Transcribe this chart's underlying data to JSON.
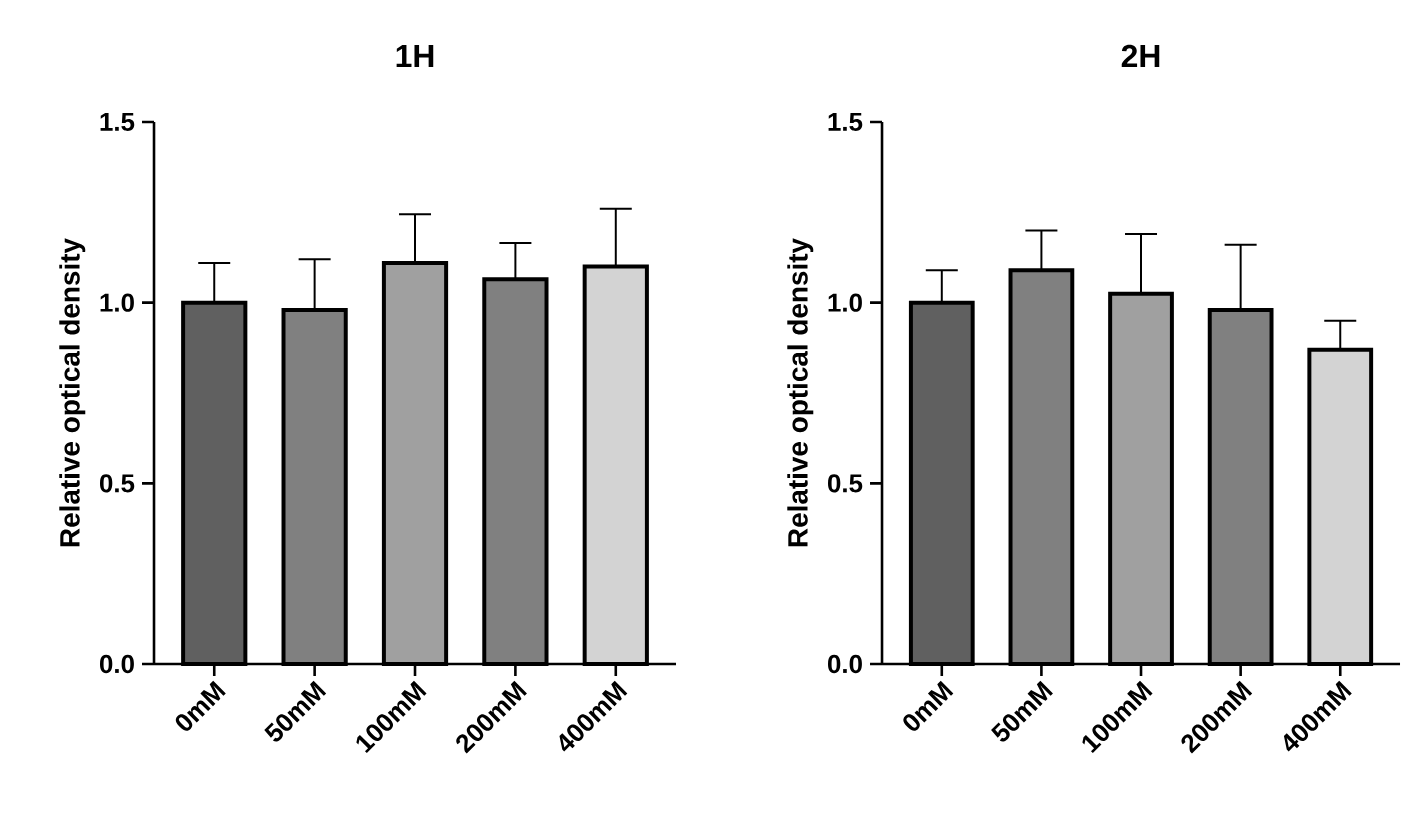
{
  "chart_data": [
    {
      "type": "bar",
      "title": "1H",
      "ylabel": "Relative optical density",
      "categories": [
        "0mM",
        "50mM",
        "100mM",
        "200mM",
        "400mM"
      ],
      "values": [
        1.0,
        0.98,
        1.11,
        1.065,
        1.1
      ],
      "errors": [
        [
          1.0,
          1.11
        ],
        [
          0.98,
          1.12
        ],
        [
          1.11,
          1.245
        ],
        [
          1.065,
          1.165
        ],
        [
          1.1,
          1.26
        ]
      ],
      "colors": [
        "#606060",
        "#808080",
        "#a0a0a0",
        "#808080",
        "#d3d3d3"
      ],
      "ylim": [
        0,
        1.5
      ],
      "yticks": [
        {
          "value": 0,
          "label": "0.0"
        },
        {
          "value": 0.5,
          "label": "0.5"
        },
        {
          "value": 1.0,
          "label": "1.0"
        },
        {
          "value": 1.5,
          "label": "1.5"
        }
      ]
    },
    {
      "type": "bar",
      "title": "2H",
      "ylabel": "Relative optical density",
      "categories": [
        "0mM",
        "50mM",
        "100mM",
        "200mM",
        "400mM"
      ],
      "values": [
        1.0,
        1.09,
        1.025,
        0.98,
        0.87
      ],
      "errors": [
        [
          1.0,
          1.09
        ],
        [
          1.09,
          1.2
        ],
        [
          1.025,
          1.19
        ],
        [
          0.98,
          1.16
        ],
        [
          0.87,
          0.95
        ]
      ],
      "colors": [
        "#606060",
        "#808080",
        "#a0a0a0",
        "#808080",
        "#d3d3d3"
      ],
      "ylim": [
        0,
        1.5
      ],
      "yticks": [
        {
          "value": 0,
          "label": "0.0"
        },
        {
          "value": 0.5,
          "label": "0.5"
        },
        {
          "value": 1.0,
          "label": "1.0"
        },
        {
          "value": 1.5,
          "label": "1.5"
        }
      ]
    }
  ]
}
